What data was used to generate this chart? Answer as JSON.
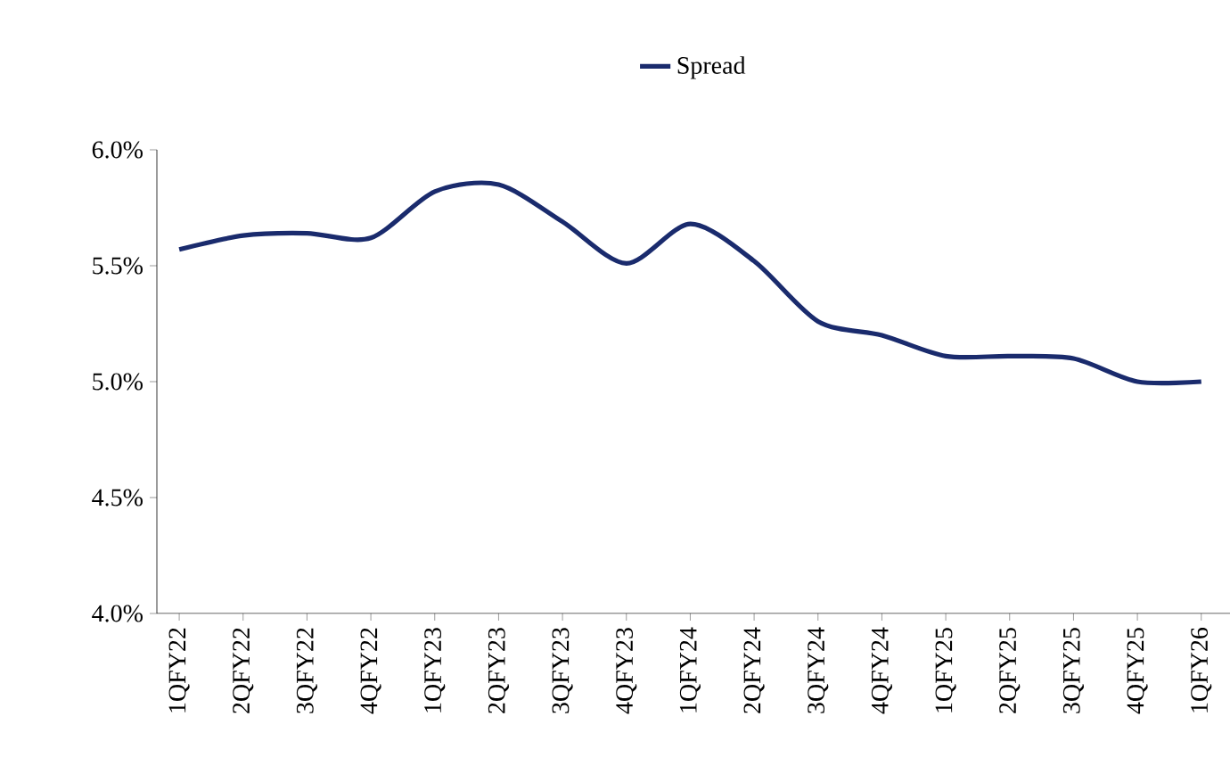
{
  "chart_data": {
    "type": "line",
    "categories": [
      "1QFY22",
      "2QFY22",
      "3QFY22",
      "4QFY22",
      "1QFY23",
      "2QFY23",
      "3QFY23",
      "4QFY23",
      "1QFY24",
      "2QFY24",
      "3QFY24",
      "4QFY24",
      "1QFY25",
      "2QFY25",
      "3QFY25",
      "4QFY25",
      "1QFY26"
    ],
    "series": [
      {
        "name": "Spread",
        "color": "#1a2b6d",
        "values": [
          5.57,
          5.63,
          5.64,
          5.62,
          5.82,
          5.85,
          5.69,
          5.51,
          5.68,
          5.52,
          5.26,
          5.2,
          5.11,
          5.11,
          5.1,
          5.0,
          5.0
        ]
      }
    ],
    "ylim": [
      4.0,
      6.0
    ],
    "yticks": [
      {
        "value": 4.0,
        "label": "4.0%"
      },
      {
        "value": 4.5,
        "label": "4.5%"
      },
      {
        "value": 5.0,
        "label": "5.0%"
      },
      {
        "value": 5.5,
        "label": "5.5%"
      },
      {
        "value": 6.0,
        "label": "6.0%"
      }
    ],
    "legend": "top"
  }
}
